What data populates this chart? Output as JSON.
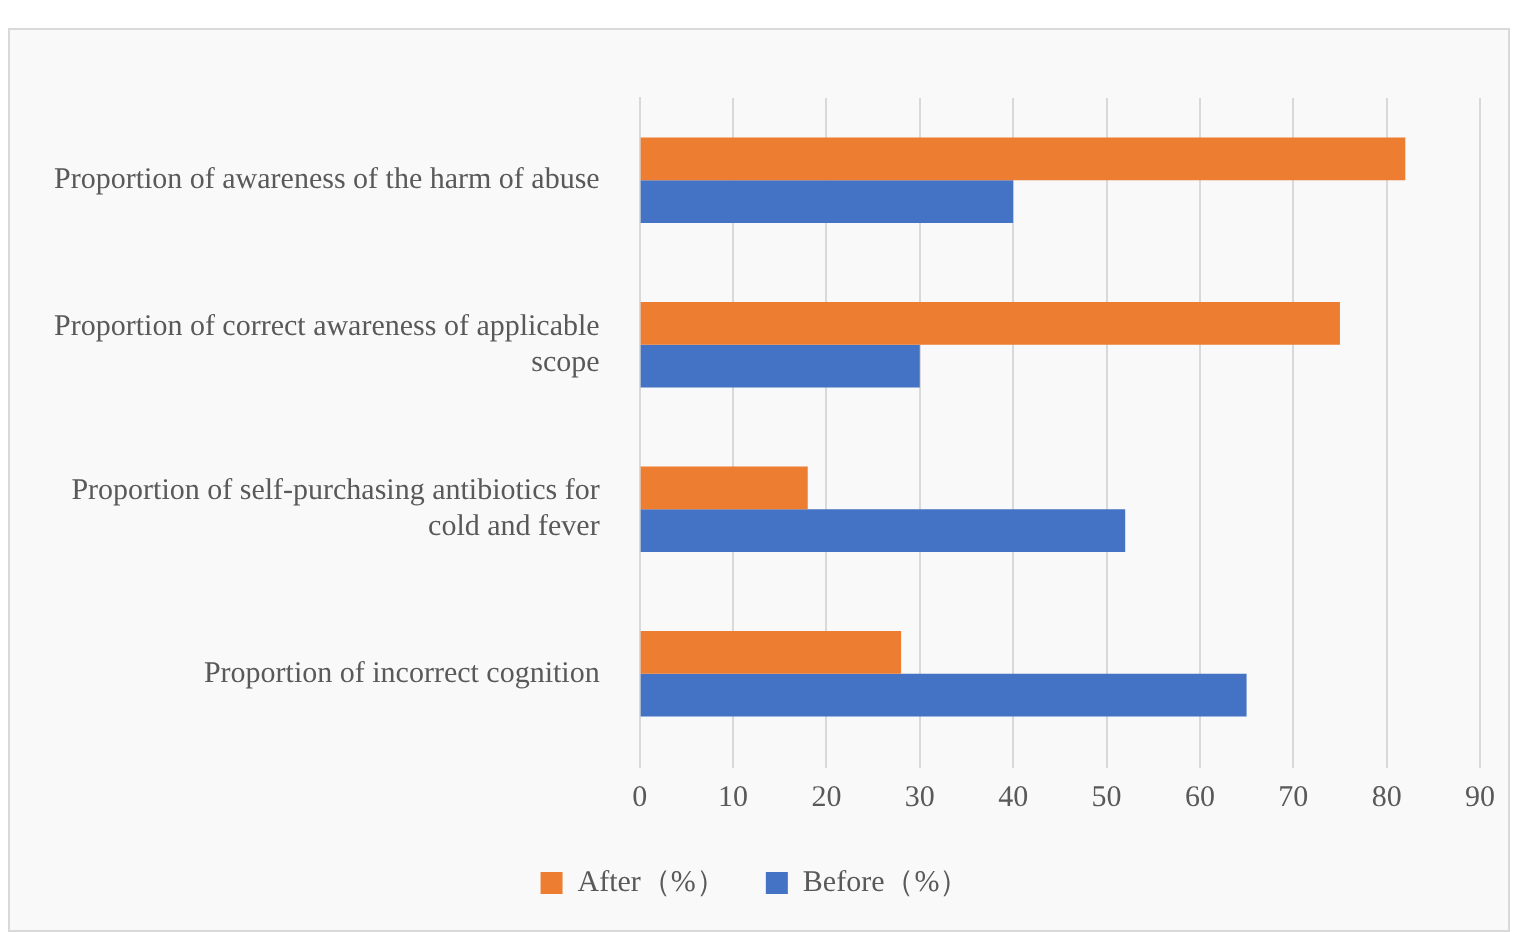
{
  "chart_data": {
    "type": "bar",
    "orientation": "horizontal",
    "categories": [
      "Proportion of awareness of the harm of abuse",
      "Proportion of correct awareness of applicable scope",
      "Proportion of self-purchasing antibiotics for cold and fever",
      "Proportion of incorrect cognition"
    ],
    "series": [
      {
        "name": "After（%）",
        "color": "#ed7d31",
        "values": [
          82,
          75,
          18,
          28
        ]
      },
      {
        "name": "Before（%）",
        "color": "#4472c4",
        "values": [
          40,
          30,
          52,
          65
        ]
      }
    ],
    "xlim": [
      0,
      90
    ],
    "xticks": [
      0,
      10,
      20,
      30,
      40,
      50,
      60,
      70,
      80,
      90
    ],
    "grid": "x",
    "legend": "bottom"
  }
}
